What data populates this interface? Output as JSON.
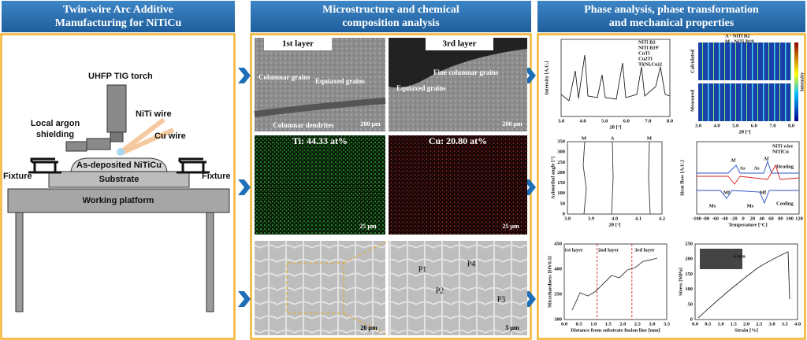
{
  "left": {
    "title_lines": [
      "Twin-wire Arc Additive",
      "Manufacturing for NiTiCu"
    ],
    "labels": [
      "UHFP TIG torch",
      "NiTi wire",
      "Local argon",
      "shielding",
      "Cu wire",
      "As-deposited NiTiCu",
      "Fixture",
      "Fixture",
      "Substrate",
      "Working platform"
    ]
  },
  "middle": {
    "title_lines": [
      "Microstructure and chemical",
      "composition analysis"
    ],
    "tiles": [
      {
        "labels": [
          "1st layer",
          "Columnar grains",
          "Equiaxed grains",
          "Columnar dendrites",
          "200 µm"
        ]
      },
      {
        "labels": [
          "3rd layer",
          "Fine columnar grains",
          "Equiaxed grains",
          "200 µm"
        ]
      },
      {
        "labels": [
          "Ti: 44.33 at%",
          "25 µm"
        ]
      },
      {
        "labels": [
          "Cu: 20.80 at%",
          "25 µm"
        ]
      },
      {
        "labels": [
          "20 µm"
        ]
      },
      {
        "labels": [
          "P1",
          "P2",
          "P4",
          "P3",
          "5 µm"
        ]
      }
    ]
  },
  "right": {
    "title_lines": [
      "Phase analysis, phase transformation",
      "and mechanical properties"
    ],
    "plots": [
      {
        "xlabel": "2θ [°]",
        "ylabel": "Intensity [A.U.]",
        "xticks": [
          "3.0",
          "4.0",
          "5.0",
          "6.0",
          "7.0",
          "8.0"
        ],
        "yticks": [],
        "labels": [
          "NiTi B2",
          "NiTi B19'",
          "CuTi",
          "Cu2Ti",
          "Ti(Ni,Cu)2"
        ]
      },
      {
        "xlabel": "2θ [°]",
        "ylabel": "",
        "xticks": [
          "3.0",
          "4.0",
          "5.0",
          "6.0",
          "7.0",
          "8.0"
        ],
        "yticks": [],
        "labels": [
          "A - NiTi B2",
          "M - NiTi B19",
          "Calculated",
          "Measured",
          "Intensity"
        ]
      },
      {
        "xlabel": "2θ [°]",
        "ylabel": "Azimuthal angle [°]",
        "xticks": [
          "3.8",
          "3.9",
          "4.0",
          "4.1",
          "4.2"
        ],
        "yticks": [
          "0",
          "50",
          "100",
          "150",
          "200",
          "250",
          "300",
          "350"
        ],
        "labels": [
          "M",
          "A",
          "M"
        ]
      },
      {
        "xlabel": "Temperature [°C]",
        "ylabel": "Heat flow [A.U.]",
        "xticks": [
          "-100",
          "-80",
          "-60",
          "-40",
          "-20",
          "0",
          "20",
          "40",
          "60",
          "80",
          "100",
          "120"
        ],
        "yticks": [],
        "labels": [
          "NiTi wire",
          "NiTiCu",
          "Heating",
          "Cooling",
          "Af",
          "As",
          "Af",
          "As",
          "Ms",
          "Mf",
          "Ms",
          "Mf"
        ]
      },
      {
        "xlabel": "Distance from substrate fusion line [mm]",
        "ylabel": "Microhardness [HV0.5]",
        "xticks": [
          "0.0",
          "0.5",
          "1.0",
          "1.5",
          "2.0",
          "2.5",
          "3.0",
          "3.5"
        ],
        "yticks": [
          "300",
          "350",
          "400",
          "450"
        ],
        "labels": [
          "1st layer",
          "2nd layer",
          "3rd layer"
        ]
      },
      {
        "xlabel": "Strain [%]",
        "ylabel": "Stress [MPa]",
        "xticks": [
          "0.0",
          "0.5",
          "1.0",
          "1.5",
          "2.0",
          "2.5",
          "3.0",
          "3.5",
          "4.0"
        ],
        "yticks": [
          "0",
          "50",
          "100",
          "150",
          "200",
          "250"
        ],
        "labels": [
          "4 mm"
        ]
      }
    ]
  }
}
